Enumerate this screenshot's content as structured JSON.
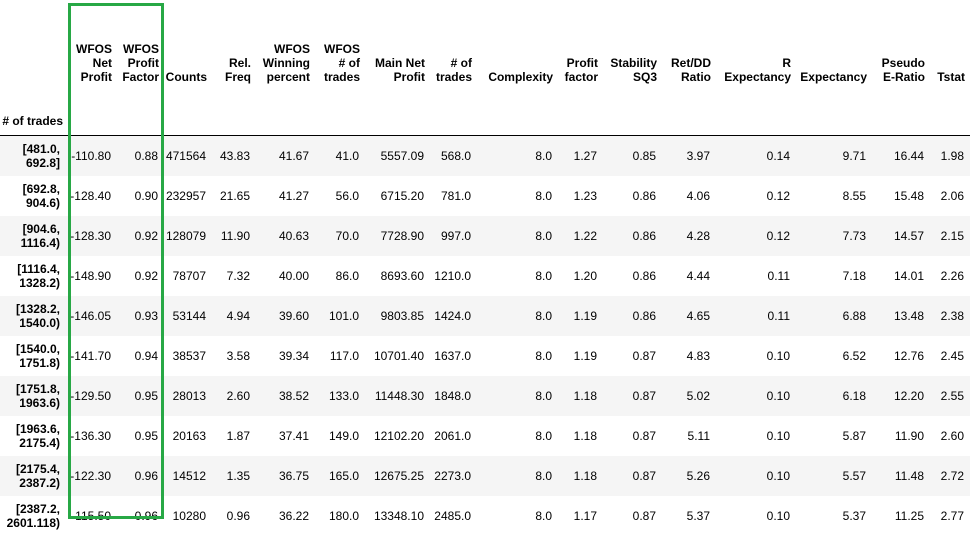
{
  "highlight_color": "#27a845",
  "columns": [
    "WFOS Net Profit",
    "WFOS Profit Factor",
    "Counts",
    "Rel. Freq",
    "WFOS Winning percent",
    "WFOS # of trades",
    "Main Net Profit",
    "# of trades",
    "Complexity",
    "Profit factor",
    "Stability SQ3",
    "Ret/DD Ratio",
    "R Expectancy",
    "Expectancy",
    "Pseudo E-Ratio",
    "Tstat"
  ],
  "index_name": "# of trades",
  "rows": [
    {
      "idx": "[481.0, 692.8]",
      "cells": [
        "-110.80",
        "0.88",
        "471564",
        "43.83",
        "41.67",
        "41.0",
        "5557.09",
        "568.0",
        "8.0",
        "1.27",
        "0.85",
        "3.97",
        "0.14",
        "9.71",
        "16.44",
        "1.98"
      ]
    },
    {
      "idx": "[692.8, 904.6)",
      "cells": [
        "-128.40",
        "0.90",
        "232957",
        "21.65",
        "41.27",
        "56.0",
        "6715.20",
        "781.0",
        "8.0",
        "1.23",
        "0.86",
        "4.06",
        "0.12",
        "8.55",
        "15.48",
        "2.06"
      ]
    },
    {
      "idx": "[904.6, 1116.4)",
      "cells": [
        "-128.30",
        "0.92",
        "128079",
        "11.90",
        "40.63",
        "70.0",
        "7728.90",
        "997.0",
        "8.0",
        "1.22",
        "0.86",
        "4.28",
        "0.12",
        "7.73",
        "14.57",
        "2.15"
      ]
    },
    {
      "idx": "[1116.4, 1328.2)",
      "cells": [
        "-148.90",
        "0.92",
        "78707",
        "7.32",
        "40.00",
        "86.0",
        "8693.60",
        "1210.0",
        "8.0",
        "1.20",
        "0.86",
        "4.44",
        "0.11",
        "7.18",
        "14.01",
        "2.26"
      ]
    },
    {
      "idx": "[1328.2, 1540.0)",
      "cells": [
        "-146.05",
        "0.93",
        "53144",
        "4.94",
        "39.60",
        "101.0",
        "9803.85",
        "1424.0",
        "8.0",
        "1.19",
        "0.86",
        "4.65",
        "0.11",
        "6.88",
        "13.48",
        "2.38"
      ]
    },
    {
      "idx": "[1540.0, 1751.8)",
      "cells": [
        "-141.70",
        "0.94",
        "38537",
        "3.58",
        "39.34",
        "117.0",
        "10701.40",
        "1637.0",
        "8.0",
        "1.19",
        "0.87",
        "4.83",
        "0.10",
        "6.52",
        "12.76",
        "2.45"
      ]
    },
    {
      "idx": "[1751.8, 1963.6)",
      "cells": [
        "-129.50",
        "0.95",
        "28013",
        "2.60",
        "38.52",
        "133.0",
        "11448.30",
        "1848.0",
        "8.0",
        "1.18",
        "0.87",
        "5.02",
        "0.10",
        "6.18",
        "12.20",
        "2.55"
      ]
    },
    {
      "idx": "[1963.6, 2175.4)",
      "cells": [
        "-136.30",
        "0.95",
        "20163",
        "1.87",
        "37.41",
        "149.0",
        "12102.20",
        "2061.0",
        "8.0",
        "1.18",
        "0.87",
        "5.11",
        "0.10",
        "5.87",
        "11.90",
        "2.60"
      ]
    },
    {
      "idx": "[2175.4, 2387.2)",
      "cells": [
        "-122.30",
        "0.96",
        "14512",
        "1.35",
        "36.75",
        "165.0",
        "12675.25",
        "2273.0",
        "8.0",
        "1.18",
        "0.87",
        "5.26",
        "0.10",
        "5.57",
        "11.48",
        "2.72"
      ]
    },
    {
      "idx": "[2387.2, 2601.118)",
      "cells": [
        "-115.50",
        "0.96",
        "10280",
        "0.96",
        "36.22",
        "180.0",
        "13348.10",
        "2485.0",
        "8.0",
        "1.17",
        "0.87",
        "5.37",
        "0.10",
        "5.37",
        "11.25",
        "2.77"
      ]
    }
  ]
}
